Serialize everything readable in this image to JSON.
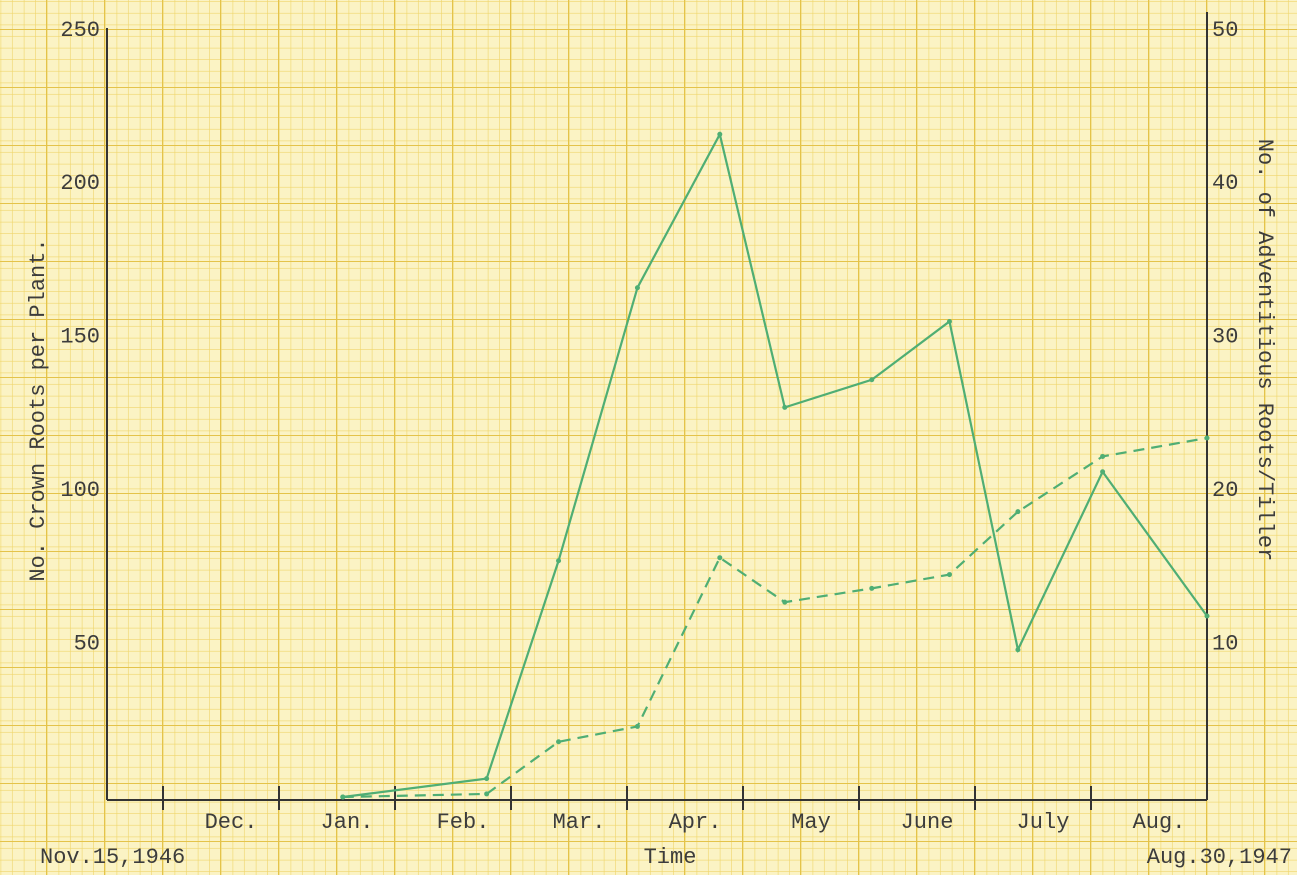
{
  "chart_data": {
    "type": "line",
    "y_label": "No. Crown Roots per Plant.",
    "y2_label": "No. of Adventitious Roots/Tiller",
    "x_label": "Time",
    "start_label": "Nov.15,1946",
    "end_label": "Aug.30,1947",
    "x": [
      2.55,
      3.79,
      4.41,
      5.09,
      5.8,
      6.36,
      7.11,
      7.78,
      8.37,
      9.1,
      10
    ],
    "xlim": [
      0.5,
      10
    ],
    "xticks": [
      {
        "value": 1.5,
        "label": "Dec."
      },
      {
        "value": 2.5,
        "label": "Jan."
      },
      {
        "value": 3.5,
        "label": "Feb."
      },
      {
        "value": 4.5,
        "label": "Mar."
      },
      {
        "value": 5.5,
        "label": "Apr."
      },
      {
        "value": 6.5,
        "label": "May"
      },
      {
        "value": 7.5,
        "label": "June"
      },
      {
        "value": 8.5,
        "label": "July"
      },
      {
        "value": 9.5,
        "label": "Aug."
      }
    ],
    "ylim": [
      0,
      250
    ],
    "yticks": [
      50,
      100,
      150,
      200,
      250
    ],
    "y2lim": [
      0,
      50
    ],
    "y2ticks": [
      10,
      20,
      30,
      40,
      50
    ],
    "series": [
      {
        "color": "#4fae74",
        "style": "solid",
        "values": [
          0,
          6,
          77,
          166,
          216,
          127,
          136,
          155,
          48,
          106,
          59
        ]
      },
      {
        "color": "#4fae74",
        "style": "dashed",
        "axis": "y2",
        "values": [
          0,
          0.2,
          3.6,
          4.6,
          15.6,
          12.7,
          13.6,
          14.5,
          18.6,
          22.2,
          23.4
        ]
      }
    ]
  }
}
